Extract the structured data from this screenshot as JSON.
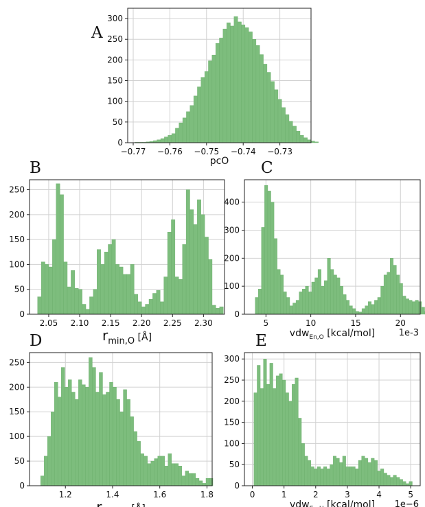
{
  "chart_data": [
    {
      "letter": "A",
      "type": "bar",
      "xlabel": "pcO",
      "xlim": [
        -0.7715,
        -0.7215
      ],
      "ylim": [
        0,
        325
      ],
      "xticks": [
        -0.77,
        -0.76,
        -0.75,
        -0.74,
        -0.73
      ],
      "xtick_labels": [
        "−0.77",
        "−0.76",
        "−0.75",
        "−0.74",
        "−0.73"
      ],
      "yticks": [
        0,
        50,
        100,
        150,
        200,
        250,
        300
      ],
      "ytick_labels": [
        "0",
        "50",
        "100",
        "150",
        "200",
        "250",
        "300"
      ],
      "grid": true,
      "bin_start": -0.7695,
      "bin_width": 0.001,
      "values": [
        1,
        1,
        1,
        2,
        3,
        5,
        7,
        10,
        14,
        18,
        22,
        35,
        48,
        60,
        75,
        90,
        113,
        135,
        158,
        172,
        198,
        212,
        240,
        253,
        275,
        290,
        282,
        305,
        292,
        285,
        278,
        268,
        250,
        235,
        213,
        190,
        170,
        148,
        128,
        105,
        85,
        68,
        52,
        40,
        28,
        18,
        12,
        7,
        4,
        2
      ]
    },
    {
      "letter": "B",
      "type": "bar",
      "xlabel_main": "r",
      "xlabel_sub": "min,O",
      "xlabel_unit": "[Å]",
      "xlim": [
        2.019,
        2.334
      ],
      "ylim": [
        0,
        270
      ],
      "xticks": [
        2.05,
        2.1,
        2.15,
        2.2,
        2.25,
        2.3
      ],
      "xtick_labels": [
        "2.05",
        "2.10",
        "2.15",
        "2.20",
        "2.25",
        "2.30"
      ],
      "yticks": [
        0,
        50,
        100,
        150,
        200,
        250
      ],
      "ytick_labels": [
        "0",
        "50",
        "100",
        "150",
        "200",
        "250"
      ],
      "grid": true,
      "bin_start": 2.032,
      "bin_width": 0.006,
      "values": [
        35,
        105,
        100,
        95,
        150,
        262,
        240,
        105,
        55,
        88,
        52,
        50,
        20,
        10,
        35,
        50,
        130,
        100,
        125,
        140,
        150,
        100,
        95,
        80,
        80,
        100,
        40,
        25,
        15,
        20,
        30,
        42,
        48,
        25,
        75,
        165,
        190,
        75,
        70,
        140,
        250,
        210,
        180,
        230,
        200,
        155,
        110,
        18,
        12,
        15
      ]
    },
    {
      "letter": "C",
      "type": "bar",
      "xlabel_main": "vdw",
      "xlabel_sub": "En,O",
      "xlabel_unit": " [kcal/mol]",
      "offset_text": "1e-3",
      "xlim": [
        2.6,
        22.2
      ],
      "ylim": [
        0,
        480
      ],
      "xticks": [
        5,
        10,
        15,
        20
      ],
      "xtick_labels": [
        "5",
        "10",
        "15",
        "20"
      ],
      "yticks": [
        0,
        100,
        200,
        300,
        400
      ],
      "ytick_labels": [
        "0",
        "100",
        "200",
        "300",
        "400"
      ],
      "grid": true,
      "bin_start": 3.8,
      "bin_width": 0.35,
      "values": [
        60,
        90,
        310,
        460,
        440,
        400,
        270,
        160,
        140,
        80,
        60,
        30,
        40,
        50,
        80,
        90,
        100,
        80,
        115,
        130,
        160,
        100,
        120,
        200,
        160,
        140,
        130,
        100,
        70,
        50,
        30,
        20,
        10,
        8,
        20,
        30,
        45,
        35,
        50,
        60,
        100,
        140,
        150,
        200,
        175,
        140,
        110,
        65,
        55,
        50,
        45,
        50,
        45,
        25,
        10
      ]
    },
    {
      "letter": "D",
      "type": "bar",
      "xlabel_main": "r",
      "xlabel_sub": "min,H",
      "xlabel_unit": " [Å]",
      "xlim": [
        1.048,
        1.822
      ],
      "ylim": [
        0,
        270
      ],
      "xticks": [
        1.2,
        1.4,
        1.6,
        1.8
      ],
      "xtick_labels": [
        "1.2",
        "1.4",
        "1.6",
        "1.8"
      ],
      "yticks": [
        0,
        50,
        100,
        150,
        200,
        250
      ],
      "ytick_labels": [
        "0",
        "50",
        "100",
        "150",
        "200",
        "250"
      ],
      "grid": true,
      "bin_start": 1.095,
      "bin_width": 0.0146,
      "values": [
        20,
        60,
        100,
        150,
        210,
        180,
        240,
        200,
        215,
        190,
        175,
        215,
        205,
        200,
        260,
        240,
        190,
        230,
        185,
        190,
        210,
        200,
        175,
        150,
        195,
        175,
        140,
        110,
        90,
        65,
        60,
        45,
        50,
        55,
        60,
        60,
        40,
        65,
        45,
        45,
        40,
        20,
        30,
        25,
        25,
        15,
        10,
        5,
        15,
        15
      ]
    },
    {
      "letter": "E",
      "type": "bar",
      "xlabel_main": "vdw",
      "xlabel_sub": "En,H",
      "xlabel_unit": " [kcal/mol]",
      "offset_text": "1e−6",
      "xlim": [
        -0.25,
        5.3
      ],
      "ylim": [
        0,
        315
      ],
      "xticks": [
        0,
        1,
        2,
        3,
        4,
        5
      ],
      "xtick_labels": [
        "0",
        "1",
        "2",
        "3",
        "4",
        "5"
      ],
      "yticks": [
        0,
        50,
        100,
        150,
        200,
        250,
        300
      ],
      "ytick_labels": [
        "0",
        "50",
        "100",
        "150",
        "200",
        "250",
        "300"
      ],
      "grid": true,
      "bin_start": 0.05,
      "bin_width": 0.1,
      "values": [
        220,
        285,
        230,
        300,
        240,
        290,
        230,
        260,
        265,
        250,
        220,
        200,
        240,
        255,
        160,
        100,
        70,
        60,
        45,
        40,
        45,
        40,
        45,
        40,
        50,
        70,
        65,
        55,
        70,
        45,
        45,
        45,
        40,
        60,
        70,
        65,
        55,
        65,
        60,
        35,
        40,
        30,
        25,
        20,
        25,
        20,
        15,
        10,
        5,
        10
      ]
    }
  ]
}
